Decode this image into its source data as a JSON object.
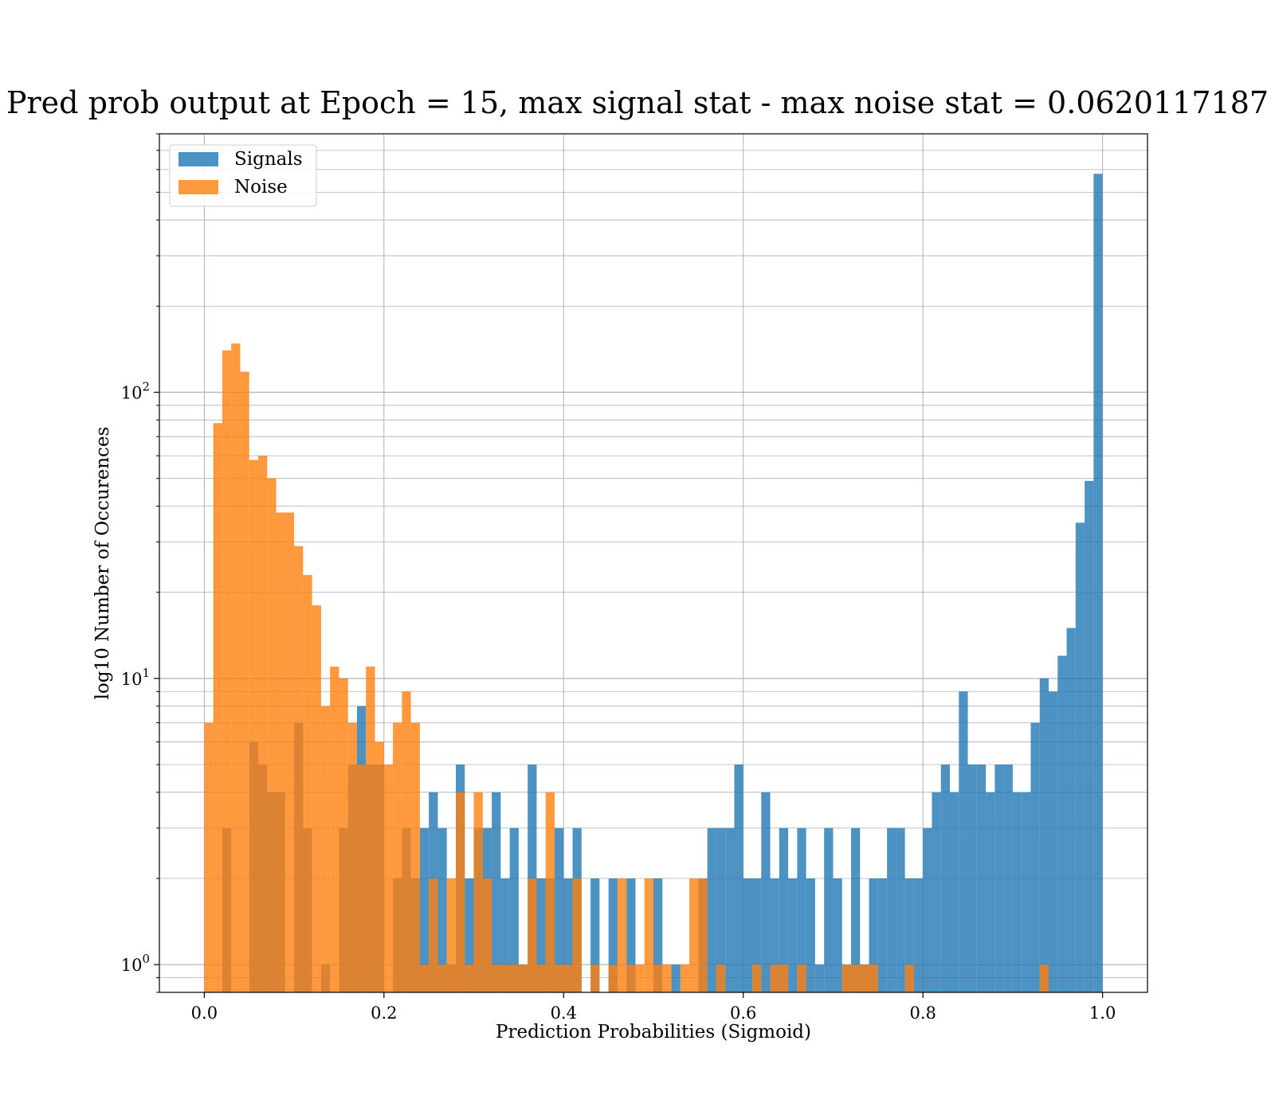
{
  "chart_data": {
    "type": "bar",
    "title": "Pred prob output at Epoch = 15, max signal stat - max noise stat = 0.0620117187",
    "xlabel": "Prediction Probabilities (Sigmoid)",
    "ylabel": "log10 Number of Occurences",
    "yscale": "log",
    "xlim": [
      -0.05,
      1.05
    ],
    "ylim": [
      0.8,
      800
    ],
    "grid": true,
    "legend_position": "upper-left",
    "x_ticks": [
      0.0,
      0.2,
      0.4,
      0.6,
      0.8,
      1.0
    ],
    "x_tick_labels": [
      "0.0",
      "0.2",
      "0.4",
      "0.6",
      "0.8",
      "1.0"
    ],
    "y_ticks": [
      1,
      10,
      100
    ],
    "y_tick_labels": [
      {
        "base": "10",
        "exp": "0"
      },
      {
        "base": "10",
        "exp": "1"
      },
      {
        "base": "10",
        "exp": "2"
      }
    ],
    "bin_width": 0.01,
    "series": [
      {
        "name": "Signals",
        "color": "#1f77b4",
        "opacity": 0.8,
        "bins": [
          [
            0.02,
            3
          ],
          [
            0.05,
            6
          ],
          [
            0.06,
            5
          ],
          [
            0.07,
            4
          ],
          [
            0.08,
            4
          ],
          [
            0.1,
            7
          ],
          [
            0.11,
            3
          ],
          [
            0.13,
            1
          ],
          [
            0.15,
            3
          ],
          [
            0.16,
            5
          ],
          [
            0.17,
            8
          ],
          [
            0.18,
            5
          ],
          [
            0.19,
            5
          ],
          [
            0.21,
            2
          ],
          [
            0.22,
            3
          ],
          [
            0.23,
            2
          ],
          [
            0.24,
            3
          ],
          [
            0.25,
            4
          ],
          [
            0.26,
            3
          ],
          [
            0.27,
            1
          ],
          [
            0.28,
            5
          ],
          [
            0.29,
            2
          ],
          [
            0.3,
            3
          ],
          [
            0.31,
            3
          ],
          [
            0.32,
            4
          ],
          [
            0.33,
            2
          ],
          [
            0.34,
            3
          ],
          [
            0.35,
            1
          ],
          [
            0.36,
            5
          ],
          [
            0.37,
            2
          ],
          [
            0.38,
            2
          ],
          [
            0.39,
            3
          ],
          [
            0.4,
            2
          ],
          [
            0.41,
            3
          ],
          [
            0.43,
            2
          ],
          [
            0.45,
            2
          ],
          [
            0.47,
            2
          ],
          [
            0.5,
            2
          ],
          [
            0.52,
            1
          ],
          [
            0.55,
            2
          ],
          [
            0.56,
            3
          ],
          [
            0.57,
            3
          ],
          [
            0.58,
            3
          ],
          [
            0.59,
            5
          ],
          [
            0.6,
            2
          ],
          [
            0.61,
            2
          ],
          [
            0.62,
            4
          ],
          [
            0.63,
            2
          ],
          [
            0.64,
            3
          ],
          [
            0.65,
            2
          ],
          [
            0.66,
            3
          ],
          [
            0.67,
            2
          ],
          [
            0.68,
            1
          ],
          [
            0.69,
            3
          ],
          [
            0.7,
            2
          ],
          [
            0.71,
            1
          ],
          [
            0.72,
            3
          ],
          [
            0.73,
            1
          ],
          [
            0.74,
            2
          ],
          [
            0.75,
            2
          ],
          [
            0.76,
            3
          ],
          [
            0.77,
            3
          ],
          [
            0.78,
            2
          ],
          [
            0.79,
            2
          ],
          [
            0.8,
            3
          ],
          [
            0.81,
            4
          ],
          [
            0.82,
            5
          ],
          [
            0.83,
            4
          ],
          [
            0.84,
            9
          ],
          [
            0.85,
            5
          ],
          [
            0.86,
            5
          ],
          [
            0.87,
            4
          ],
          [
            0.88,
            5
          ],
          [
            0.89,
            5
          ],
          [
            0.9,
            4
          ],
          [
            0.91,
            4
          ],
          [
            0.92,
            7
          ],
          [
            0.93,
            10
          ],
          [
            0.94,
            9
          ],
          [
            0.95,
            12
          ],
          [
            0.96,
            15
          ],
          [
            0.97,
            35
          ],
          [
            0.98,
            49
          ],
          [
            0.99,
            580
          ]
        ]
      },
      {
        "name": "Noise",
        "color": "#ff7f0e",
        "opacity": 0.8,
        "bins": [
          [
            0.0,
            7
          ],
          [
            0.01,
            78
          ],
          [
            0.02,
            140
          ],
          [
            0.03,
            148
          ],
          [
            0.04,
            118
          ],
          [
            0.05,
            58
          ],
          [
            0.06,
            60
          ],
          [
            0.07,
            50
          ],
          [
            0.08,
            38
          ],
          [
            0.09,
            38
          ],
          [
            0.1,
            29
          ],
          [
            0.11,
            23
          ],
          [
            0.12,
            18
          ],
          [
            0.13,
            8
          ],
          [
            0.14,
            11
          ],
          [
            0.15,
            10
          ],
          [
            0.16,
            7
          ],
          [
            0.17,
            5
          ],
          [
            0.18,
            11
          ],
          [
            0.19,
            6
          ],
          [
            0.2,
            5
          ],
          [
            0.21,
            7
          ],
          [
            0.22,
            9
          ],
          [
            0.23,
            7
          ],
          [
            0.24,
            1
          ],
          [
            0.25,
            2
          ],
          [
            0.26,
            1
          ],
          [
            0.27,
            2
          ],
          [
            0.28,
            4
          ],
          [
            0.29,
            1
          ],
          [
            0.3,
            4
          ],
          [
            0.31,
            2
          ],
          [
            0.32,
            1
          ],
          [
            0.33,
            1
          ],
          [
            0.34,
            1
          ],
          [
            0.35,
            1
          ],
          [
            0.36,
            2
          ],
          [
            0.37,
            1
          ],
          [
            0.38,
            4
          ],
          [
            0.39,
            1
          ],
          [
            0.4,
            1
          ],
          [
            0.41,
            2
          ],
          [
            0.43,
            1
          ],
          [
            0.45,
            1
          ],
          [
            0.46,
            2
          ],
          [
            0.47,
            1
          ],
          [
            0.48,
            1
          ],
          [
            0.49,
            2
          ],
          [
            0.5,
            1
          ],
          [
            0.51,
            1
          ],
          [
            0.53,
            1
          ],
          [
            0.54,
            2
          ],
          [
            0.55,
            2
          ],
          [
            0.57,
            1
          ],
          [
            0.61,
            1
          ],
          [
            0.63,
            1
          ],
          [
            0.64,
            1
          ],
          [
            0.66,
            1
          ],
          [
            0.71,
            1
          ],
          [
            0.72,
            1
          ],
          [
            0.73,
            1
          ],
          [
            0.74,
            1
          ],
          [
            0.78,
            1
          ],
          [
            0.93,
            1
          ]
        ]
      }
    ]
  }
}
